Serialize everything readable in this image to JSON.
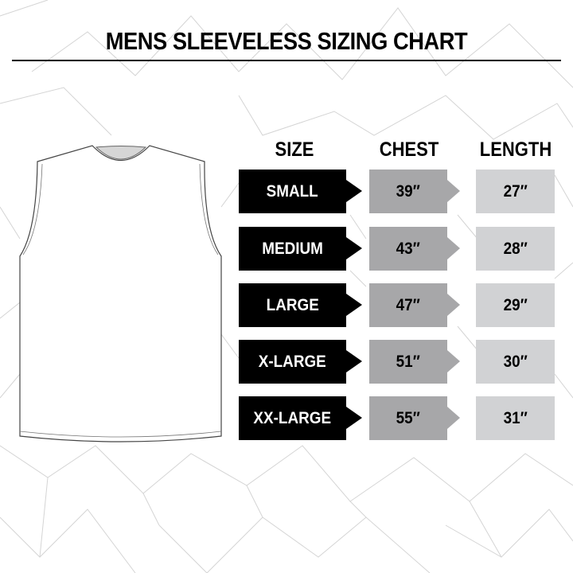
{
  "title": "MENS SLEEVELESS SIZING CHART",
  "headers": {
    "size": "SIZE",
    "chest": "CHEST",
    "length": "LENGTH"
  },
  "rows": [
    {
      "size": "SMALL",
      "chest": "39″",
      "length": "27″"
    },
    {
      "size": "MEDIUM",
      "chest": "43″",
      "length": "28″"
    },
    {
      "size": "LARGE",
      "chest": "47″",
      "length": "29″"
    },
    {
      "size": "X-LARGE",
      "chest": "51″",
      "length": "30″"
    },
    {
      "size": "XX-LARGE",
      "chest": "55″",
      "length": "31″"
    }
  ],
  "colors": {
    "size_bg": "#000000",
    "chest_bg": "#a7a7a9",
    "length_bg": "#d1d2d4"
  },
  "illustration": "sleeveless-shirt-icon"
}
